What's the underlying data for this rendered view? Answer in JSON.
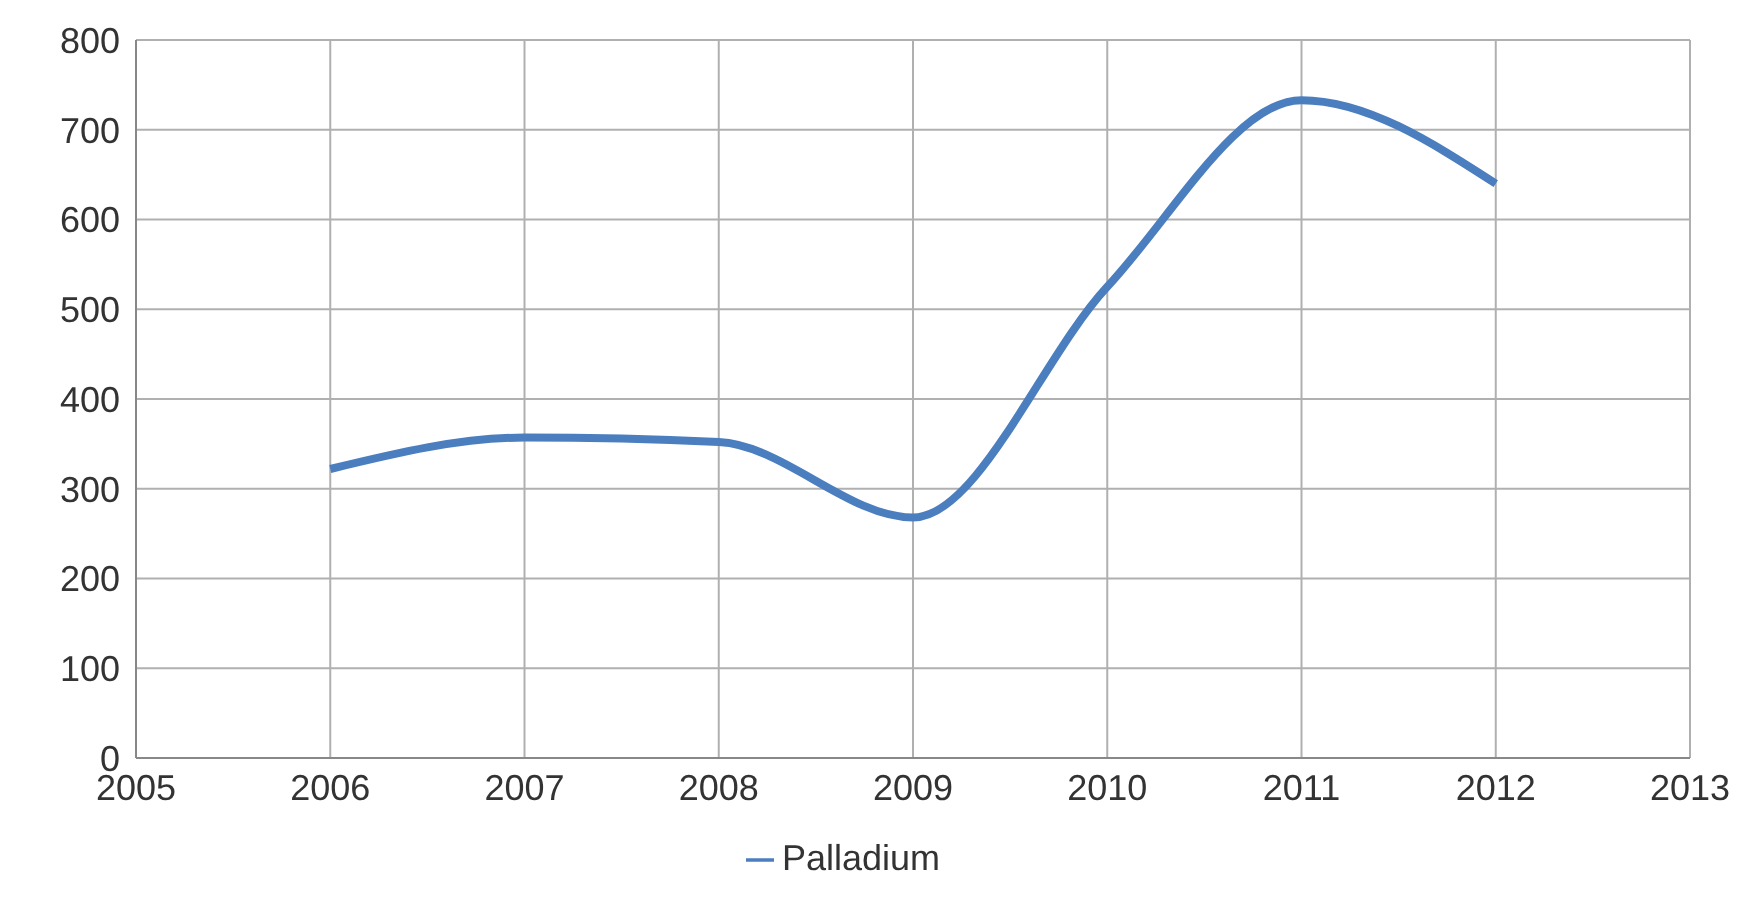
{
  "chart_data": {
    "type": "line",
    "x": [
      2006,
      2007,
      2008,
      2009,
      2010,
      2011,
      2012
    ],
    "series": [
      {
        "name": "Palladium",
        "color": "#4a7ebf",
        "values": [
          322,
          357,
          352,
          268,
          525,
          733,
          640
        ]
      }
    ],
    "xlim": [
      2005,
      2013
    ],
    "xticks": [
      2005,
      2006,
      2007,
      2008,
      2009,
      2010,
      2011,
      2012,
      2013
    ],
    "ylim": [
      0,
      800
    ],
    "yticks": [
      0,
      100,
      200,
      300,
      400,
      500,
      600,
      700,
      800
    ],
    "grid": true,
    "legend": "bottom",
    "marker": "none",
    "line_style": "solid"
  }
}
